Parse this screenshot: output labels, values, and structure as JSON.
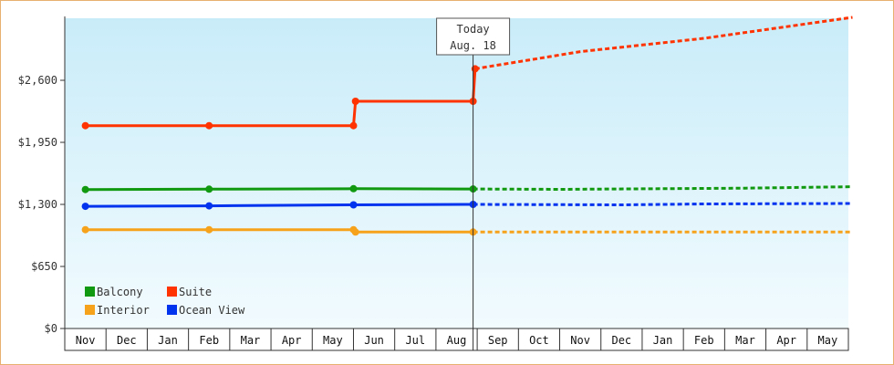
{
  "chart_data": {
    "type": "line",
    "yticks": [
      {
        "value": 0,
        "label": "$0"
      },
      {
        "value": 650,
        "label": "$650"
      },
      {
        "value": 1300,
        "label": "$1,300"
      },
      {
        "value": 1950,
        "label": "$1,950"
      },
      {
        "value": 2600,
        "label": "$2,600"
      }
    ],
    "ylim": [
      0,
      3250
    ],
    "x_months": [
      "Nov",
      "Dec",
      "Jan",
      "Feb",
      "Mar",
      "Apr",
      "May",
      "Jun",
      "Jul",
      "Aug",
      "Sep",
      "Oct",
      "Nov",
      "Dec",
      "Jan",
      "Feb",
      "Mar",
      "Apr",
      "May"
    ],
    "today_index": 9.4,
    "callout": {
      "line1": "Today",
      "line2": "Aug. 18"
    },
    "series": [
      {
        "name": "Suite",
        "color": "#ff3300",
        "history": [
          [
            0,
            2125
          ],
          [
            3,
            2125
          ],
          [
            6.5,
            2125
          ],
          [
            6.55,
            2380
          ],
          [
            9.4,
            2380
          ],
          [
            9.45,
            2720
          ]
        ],
        "forecast": [
          [
            9.45,
            2720
          ],
          [
            12,
            2900
          ],
          [
            15,
            3040
          ],
          [
            18.6,
            3260
          ]
        ]
      },
      {
        "name": "Balcony",
        "color": "#119911",
        "history": [
          [
            0,
            1456
          ],
          [
            3,
            1460
          ],
          [
            6.5,
            1464
          ],
          [
            9.4,
            1462
          ]
        ],
        "forecast": [
          [
            9.4,
            1462
          ],
          [
            11.5,
            1458
          ],
          [
            16,
            1470
          ],
          [
            18.6,
            1485
          ]
        ]
      },
      {
        "name": "Ocean View",
        "color": "#0033ee",
        "history": [
          [
            0,
            1280
          ],
          [
            3,
            1285
          ],
          [
            6.5,
            1295
          ],
          [
            9.4,
            1300
          ]
        ],
        "forecast": [
          [
            9.4,
            1300
          ],
          [
            13,
            1295
          ],
          [
            15,
            1305
          ],
          [
            18.6,
            1310
          ]
        ]
      },
      {
        "name": "Interior",
        "color": "#f7a21b",
        "history": [
          [
            0,
            1035
          ],
          [
            3,
            1035
          ],
          [
            6.5,
            1035
          ],
          [
            6.55,
            1010
          ],
          [
            9.4,
            1010
          ]
        ],
        "forecast": [
          [
            9.4,
            1010
          ],
          [
            18.6,
            1010
          ]
        ]
      }
    ],
    "legend": [
      {
        "label": "Balcony",
        "color": "#119911"
      },
      {
        "label": "Suite",
        "color": "#ff3300"
      },
      {
        "label": "Interior",
        "color": "#f7a21b"
      },
      {
        "label": "Ocean View",
        "color": "#0033ee"
      }
    ],
    "legend_position": "bottom-left",
    "background_gradient": [
      "#c9ecf9",
      "#f2fbfe"
    ]
  }
}
